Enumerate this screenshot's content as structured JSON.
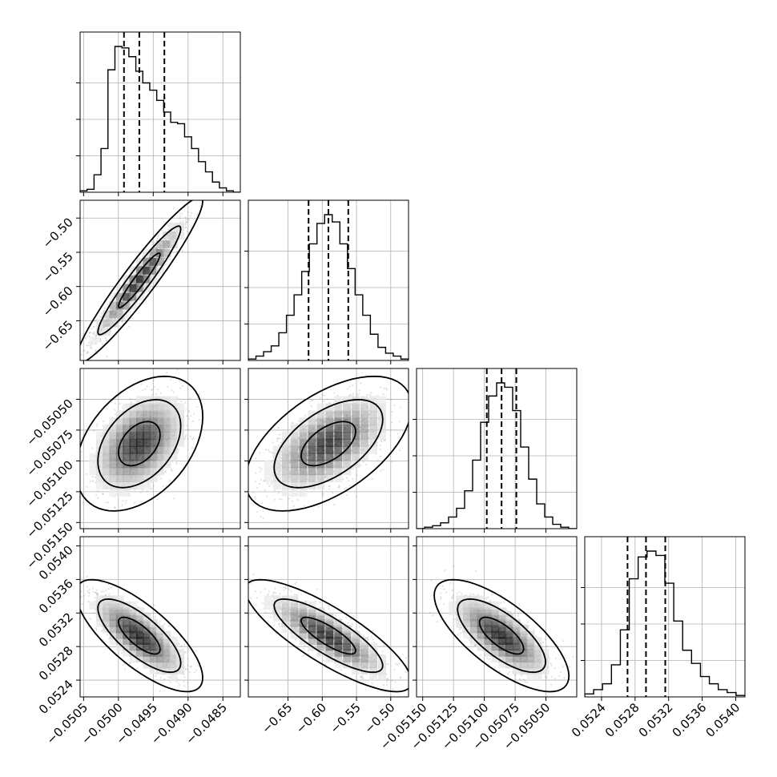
{
  "chart_data": {
    "type": "corner",
    "parameters": [
      {
        "range": [
          -0.05055,
          -0.04825
        ],
        "ticks": [
          -0.0505,
          -0.05,
          -0.0495,
          -0.049,
          -0.0485
        ],
        "tick_labels": [
          "−0.0505",
          "−0.0500",
          "−0.0495",
          "−0.0490",
          "−0.0485"
        ],
        "quantiles": [
          -0.04992,
          -0.0497,
          -0.04934
        ],
        "histogram": [
          0.01,
          0.02,
          0.12,
          0.3,
          0.84,
          1.0,
          0.99,
          0.93,
          0.83,
          0.75,
          0.7,
          0.63,
          0.55,
          0.48,
          0.47,
          0.38,
          0.3,
          0.21,
          0.14,
          0.07,
          0.03,
          0.01,
          0.0
        ]
      },
      {
        "range": [
          -0.708,
          -0.474
        ],
        "ticks": [
          -0.65,
          -0.6,
          -0.55,
          -0.5
        ],
        "tick_labels": [
          "−0.65",
          "−0.60",
          "−0.55",
          "−0.50"
        ],
        "quantiles": [
          -0.62,
          -0.591,
          -0.562
        ],
        "histogram": [
          0.01,
          0.03,
          0.06,
          0.1,
          0.19,
          0.31,
          0.45,
          0.61,
          0.8,
          0.94,
          1.0,
          0.95,
          0.8,
          0.63,
          0.45,
          0.31,
          0.18,
          0.09,
          0.05,
          0.03,
          0.01
        ]
      },
      {
        "range": [
          -0.05155,
          -0.05025
        ],
        "ticks": [
          -0.0515,
          -0.05125,
          -0.051,
          -0.05075,
          -0.0505
        ],
        "tick_labels": [
          "−0.05150",
          "−0.05125",
          "−0.05100",
          "−0.05075",
          "−0.05050"
        ],
        "quantiles": [
          -0.05098,
          -0.05086,
          -0.05074
        ],
        "histogram": [
          0.0,
          0.01,
          0.02,
          0.04,
          0.08,
          0.14,
          0.26,
          0.47,
          0.73,
          0.91,
          1.0,
          0.97,
          0.81,
          0.56,
          0.34,
          0.17,
          0.08,
          0.03,
          0.01,
          0.0
        ]
      },
      {
        "range": [
          0.0522,
          0.05411
        ],
        "ticks": [
          0.0524,
          0.0528,
          0.0532,
          0.0536,
          0.054
        ],
        "tick_labels": [
          "0.0524",
          "0.0528",
          "0.0532",
          "0.0536",
          "0.0540"
        ],
        "quantiles": [
          0.05271,
          0.05293,
          0.05316
        ],
        "histogram": [
          0.02,
          0.05,
          0.09,
          0.22,
          0.46,
          0.81,
          0.96,
          1.0,
          0.97,
          0.78,
          0.52,
          0.32,
          0.23,
          0.14,
          0.09,
          0.05,
          0.03,
          0.01
        ]
      }
    ],
    "means": [
      -0.0497,
      -0.591,
      -0.05086,
      0.05293
    ],
    "sigmas": [
      0.0003,
      0.04,
      0.00018,
      0.00022
    ],
    "correlations": [
      [
        1.0,
        0.95,
        0.4,
        -0.75
      ],
      [
        0.95,
        1.0,
        0.55,
        -0.82
      ],
      [
        0.4,
        0.55,
        1.0,
        -0.72
      ],
      [
        -0.75,
        -0.82,
        -0.72,
        1.0
      ]
    ],
    "density_levels": [
      0.39,
      0.86,
      0.99
    ],
    "grid": true,
    "colors": {
      "line": "#000000",
      "grid": "#b0b0b0",
      "points": "#777777"
    }
  }
}
